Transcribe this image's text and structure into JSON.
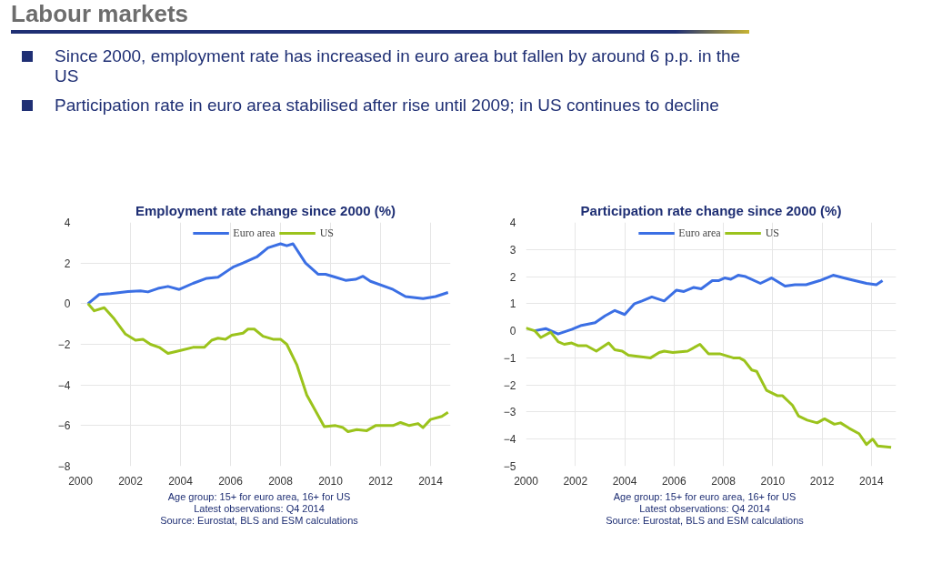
{
  "chart_data": [
    {
      "type": "other",
      "title": "Labour markets",
      "annotations": [
        "Since 2000, employment rate has increased in euro area but fallen by around 6 p.p. in the US",
        "Participation rate in euro area stabilised after rise until 2009; in US continues to decline"
      ]
    },
    {
      "type": "line",
      "title": "Employment rate change since 2000 (%)",
      "xlim": [
        2000,
        2014.8
      ],
      "ylim": [
        -8,
        4
      ],
      "xticks": [
        2000,
        2002,
        2004,
        2006,
        2008,
        2010,
        2012,
        2014
      ],
      "yticks": [
        -8,
        -6,
        -4,
        -2,
        0,
        2,
        4
      ],
      "grid": true,
      "legend": "top",
      "marker": "none",
      "line_style": "solid",
      "annotations": [
        "Age group: 15+ for euro area, 16+ for US",
        "Latest observations: Q4 2014",
        "Source: Eurostat, BLS and ESM calculations"
      ],
      "series": [
        {
          "name": "Euro area",
          "color": "#3b6fe4",
          "x": [
            2000.3,
            2000.75,
            2001.2,
            2001.9,
            2002.4,
            2002.7,
            2003.1,
            2003.5,
            2003.95,
            2004.5,
            2005.05,
            2005.5,
            2006.1,
            2006.5,
            2007.05,
            2007.5,
            2008.0,
            2008.25,
            2008.5,
            2009.0,
            2009.5,
            2009.8,
            2010.2,
            2010.6,
            2011.0,
            2011.3,
            2011.6,
            2012.5,
            2013.0,
            2013.7,
            2014.2,
            2014.7
          ],
          "values": [
            0,
            0.45,
            0.5,
            0.6,
            0.63,
            0.58,
            0.75,
            0.85,
            0.7,
            1.0,
            1.25,
            1.3,
            1.8,
            2.0,
            2.3,
            2.75,
            2.95,
            2.85,
            2.95,
            2.0,
            1.45,
            1.45,
            1.3,
            1.15,
            1.2,
            1.35,
            1.1,
            0.7,
            0.35,
            0.25,
            0.35,
            0.55
          ]
        },
        {
          "name": "US",
          "color": "#9bc31c",
          "x": [
            2000.3,
            2000.55,
            2000.95,
            2001.35,
            2001.8,
            2002.2,
            2002.5,
            2002.8,
            2003.15,
            2003.5,
            2004.0,
            2004.5,
            2004.95,
            2005.25,
            2005.5,
            2005.8,
            2006.05,
            2006.5,
            2006.7,
            2006.95,
            2007.3,
            2007.7,
            2008.0,
            2008.25,
            2008.65,
            2009.05,
            2009.75,
            2010.2,
            2010.5,
            2010.7,
            2011.05,
            2011.45,
            2011.8,
            2012.5,
            2012.8,
            2013.15,
            2013.5,
            2013.7,
            2014.0,
            2014.45,
            2014.7
          ],
          "values": [
            0,
            -0.35,
            -0.2,
            -0.75,
            -1.5,
            -1.8,
            -1.75,
            -2.0,
            -2.15,
            -2.45,
            -2.3,
            -2.15,
            -2.15,
            -1.8,
            -1.7,
            -1.75,
            -1.55,
            -1.45,
            -1.25,
            -1.25,
            -1.6,
            -1.75,
            -1.75,
            -2.0,
            -3.0,
            -4.5,
            -6.05,
            -6.0,
            -6.1,
            -6.3,
            -6.2,
            -6.25,
            -6.0,
            -6.0,
            -5.85,
            -6.0,
            -5.9,
            -6.1,
            -5.7,
            -5.55,
            -5.35
          ]
        }
      ]
    },
    {
      "type": "line",
      "title": "Participation rate change since 2000 (%)",
      "xlim": [
        2000,
        2015
      ],
      "ylim": [
        -5,
        4
      ],
      "xticks": [
        2000,
        2002,
        2004,
        2006,
        2008,
        2010,
        2012,
        2014
      ],
      "yticks": [
        -5,
        -4,
        -3,
        -2,
        -1,
        0,
        1,
        2,
        3,
        4
      ],
      "grid": true,
      "legend": "top",
      "marker": "none",
      "line_style": "solid",
      "annotations": [
        "Age group: 15+ for euro area, 16+ for US",
        "Latest observations: Q4 2014",
        "Source: Eurostat, BLS and ESM calculations"
      ],
      "series": [
        {
          "name": "Euro area",
          "color": "#3b6fe4",
          "x": [
            2000.35,
            2000.8,
            2001.3,
            2001.85,
            2002.25,
            2002.8,
            2003.2,
            2003.6,
            2004.0,
            2004.4,
            2004.7,
            2005.1,
            2005.6,
            2006.1,
            2006.4,
            2006.8,
            2007.1,
            2007.55,
            2007.8,
            2008.05,
            2008.3,
            2008.6,
            2008.9,
            2009.5,
            2009.95,
            2010.5,
            2010.9,
            2011.35,
            2011.9,
            2012.45,
            2013.1,
            2013.8,
            2014.2,
            2014.45
          ],
          "values": [
            0,
            0.08,
            -0.12,
            0.05,
            0.2,
            0.3,
            0.55,
            0.75,
            0.6,
            1.0,
            1.1,
            1.25,
            1.1,
            1.5,
            1.45,
            1.6,
            1.55,
            1.85,
            1.85,
            1.95,
            1.9,
            2.05,
            2.0,
            1.75,
            1.95,
            1.65,
            1.7,
            1.7,
            1.85,
            2.05,
            1.9,
            1.75,
            1.7,
            1.85
          ]
        },
        {
          "name": "US",
          "color": "#9bc31c",
          "x": [
            2000.0,
            2000.35,
            2000.6,
            2001.0,
            2001.3,
            2001.55,
            2001.85,
            2002.1,
            2002.45,
            2002.85,
            2003.35,
            2003.6,
            2003.9,
            2004.15,
            2004.6,
            2005.05,
            2005.4,
            2005.6,
            2005.95,
            2006.55,
            2007.05,
            2007.4,
            2007.85,
            2008.4,
            2008.65,
            2008.85,
            2009.15,
            2009.35,
            2009.75,
            2010.2,
            2010.4,
            2010.8,
            2011.05,
            2011.4,
            2011.8,
            2012.1,
            2012.5,
            2012.75,
            2013.1,
            2013.5,
            2013.8,
            2014.05,
            2014.25,
            2014.8
          ],
          "values": [
            0.1,
            0.0,
            -0.25,
            -0.05,
            -0.4,
            -0.5,
            -0.45,
            -0.55,
            -0.55,
            -0.75,
            -0.45,
            -0.7,
            -0.75,
            -0.9,
            -0.95,
            -1.0,
            -0.8,
            -0.75,
            -0.8,
            -0.75,
            -0.5,
            -0.85,
            -0.85,
            -1.0,
            -1.0,
            -1.1,
            -1.45,
            -1.5,
            -2.2,
            -2.4,
            -2.4,
            -2.75,
            -3.15,
            -3.3,
            -3.4,
            -3.25,
            -3.45,
            -3.4,
            -3.6,
            -3.8,
            -4.2,
            -4.0,
            -4.25,
            -4.3
          ]
        }
      ]
    }
  ]
}
